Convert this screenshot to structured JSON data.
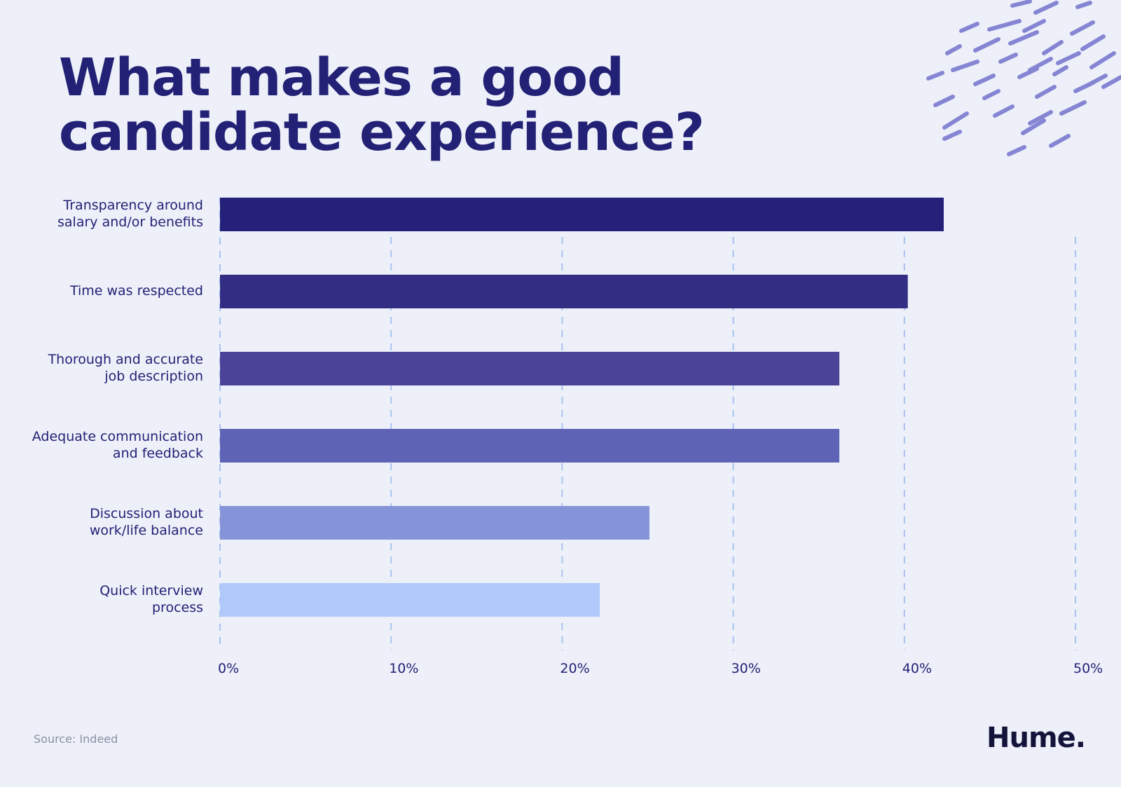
{
  "chart_data": {
    "type": "bar",
    "orientation": "horizontal",
    "title_lines": [
      "What makes a good",
      "candidate experience?"
    ],
    "categories": [
      [
        "Transparency around",
        "salary and/or benefits"
      ],
      [
        "Time was respected"
      ],
      [
        "Thorough and accurate",
        "job description"
      ],
      [
        "Adequate communication",
        "and feedback"
      ],
      [
        "Discussion about",
        "work/life balance"
      ],
      [
        "Quick interview",
        "process"
      ]
    ],
    "values": [
      42.3,
      40.2,
      36.2,
      36.2,
      25.1,
      22.2
    ],
    "bar_colors": [
      "#25217a",
      "#332e84",
      "#4a4397",
      "#5e63b5",
      "#8594d8",
      "#b0c9fb"
    ],
    "xlim": [
      0,
      50
    ],
    "xticks": [
      0,
      10,
      20,
      30,
      40,
      50
    ],
    "xtick_labels": [
      "0%",
      "10%",
      "20%",
      "30%",
      "40%",
      "50%"
    ],
    "grid": true,
    "grid_style": "dashed-vertical",
    "source": "Source: Indeed"
  },
  "brand": {
    "logo_text": "Hume.",
    "text_color": "#232175",
    "grid_color": "#a9c2f0",
    "accent_color": "#8585d3",
    "decoration": "diagonal-dash-pattern"
  }
}
